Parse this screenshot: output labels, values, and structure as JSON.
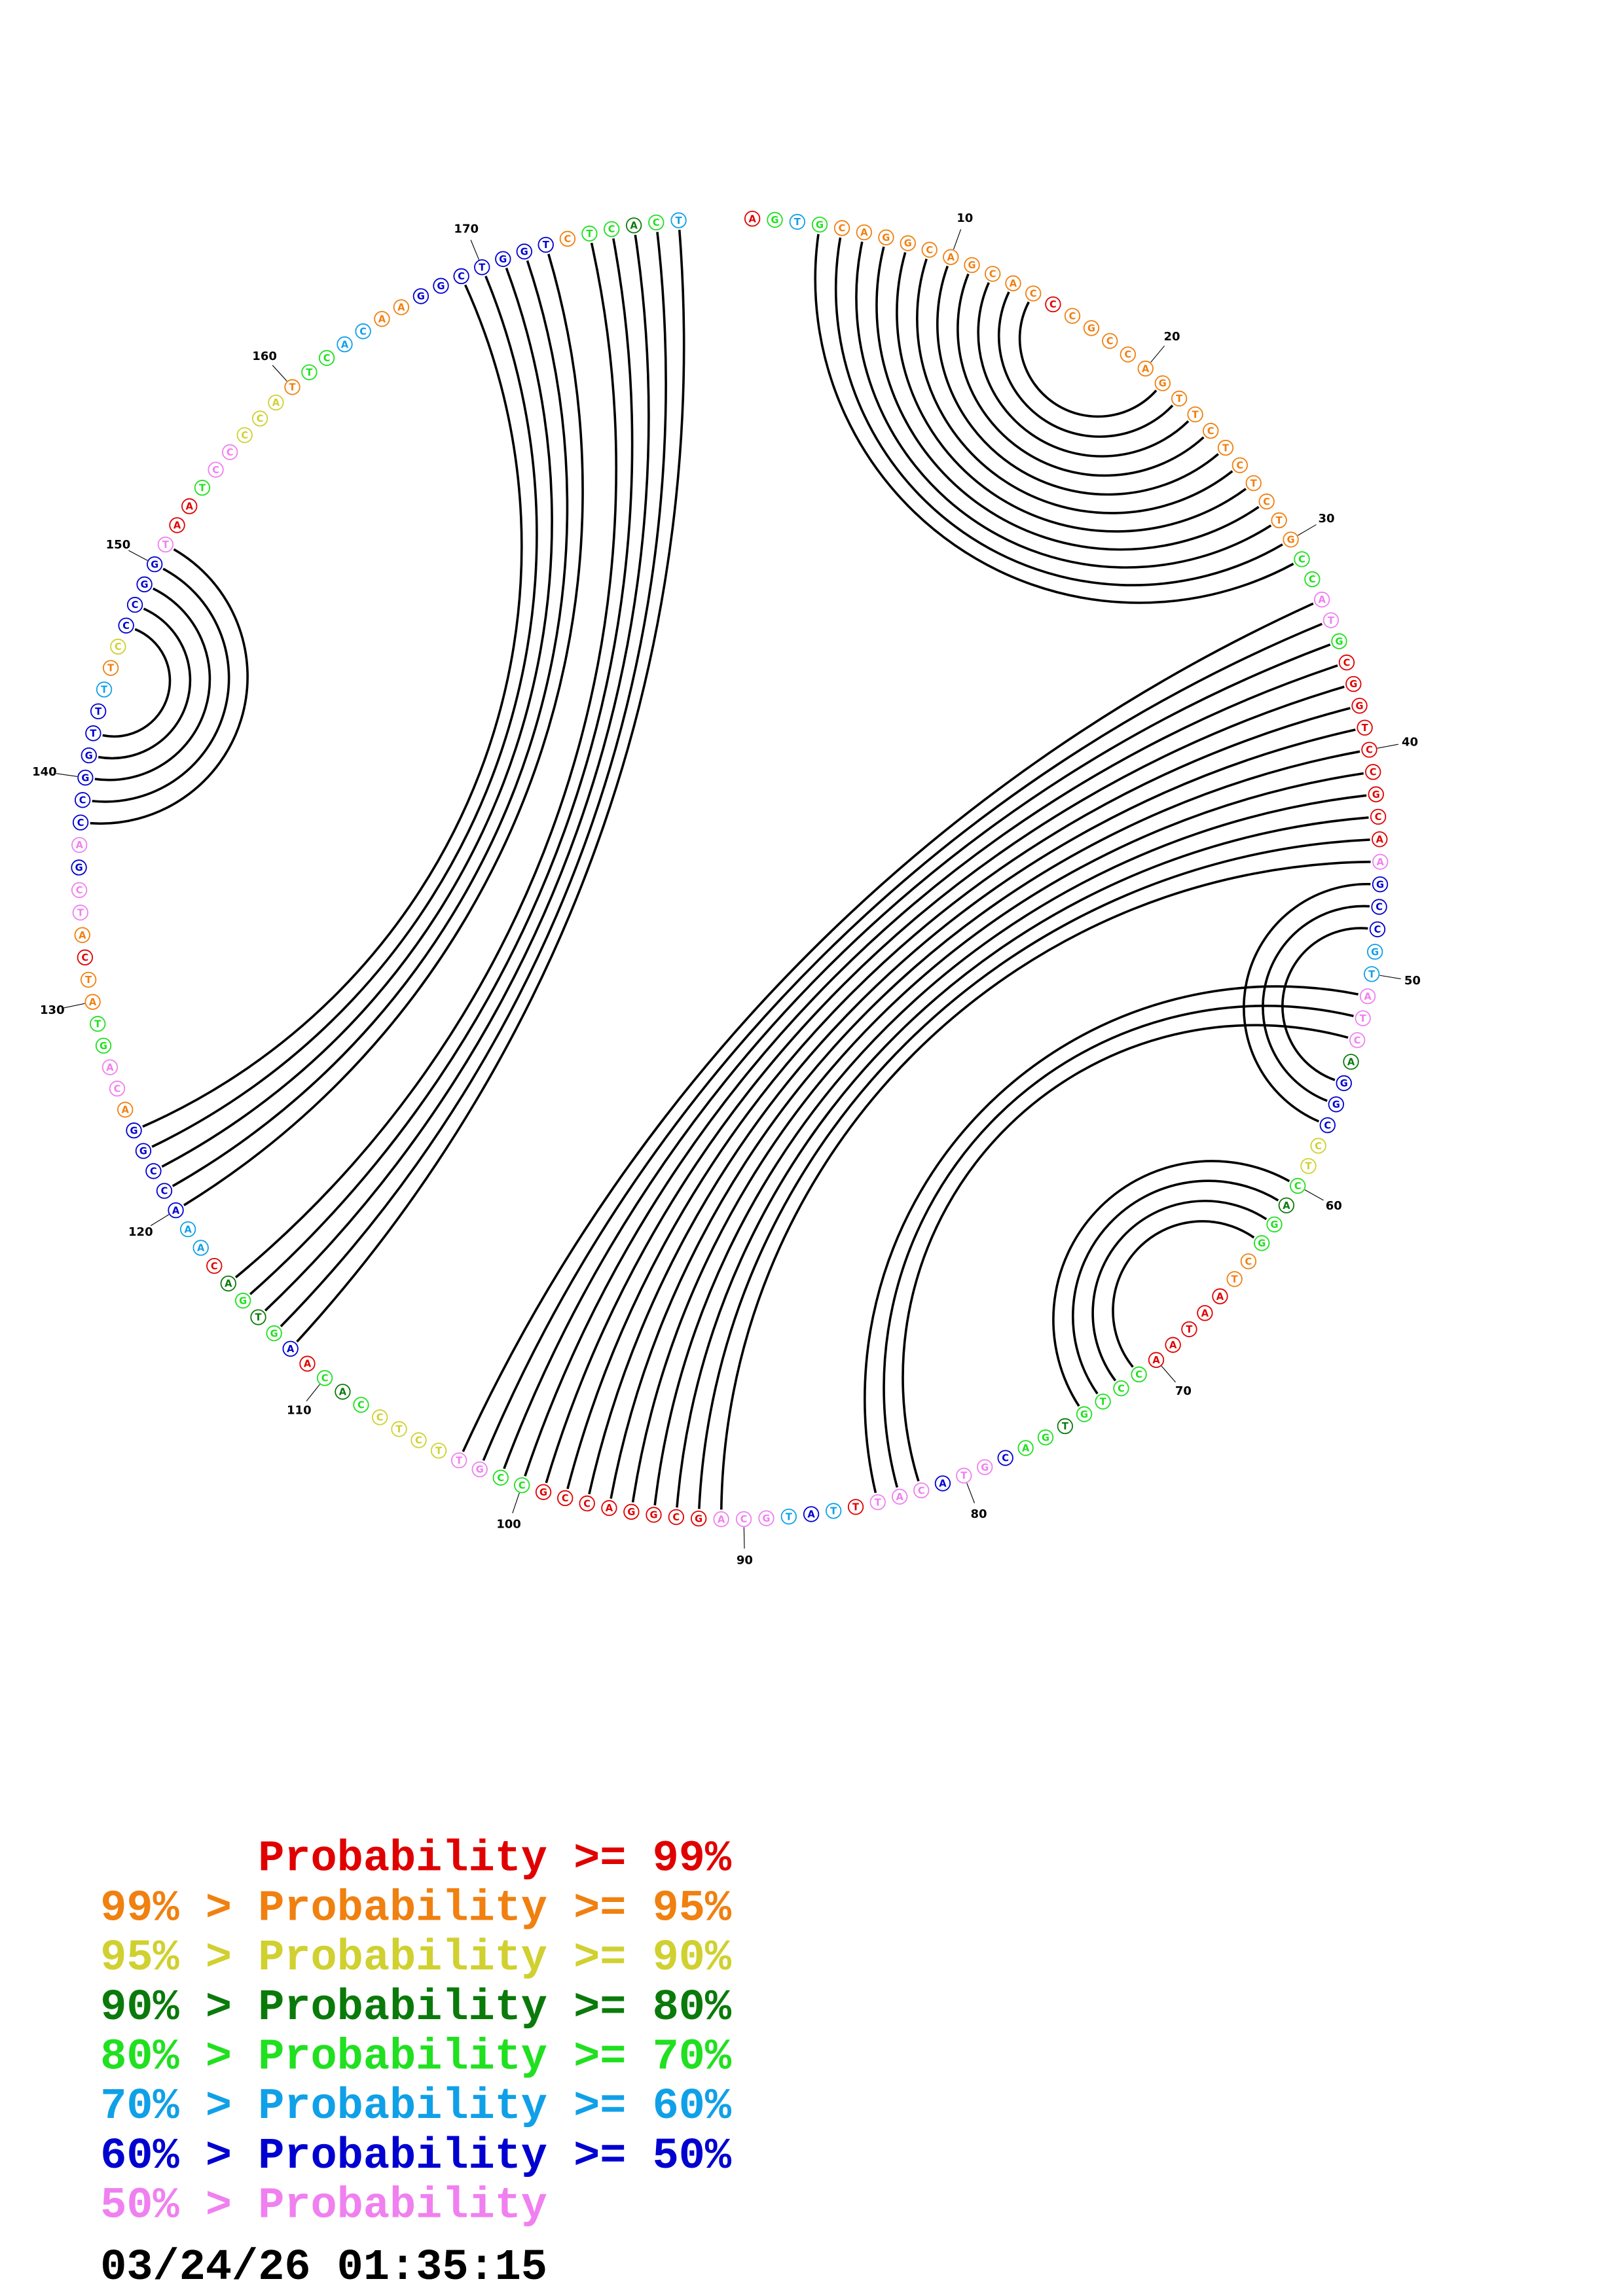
{
  "structure": {
    "bases": [
      "A",
      "G",
      "T",
      "G",
      "C",
      "A",
      "G",
      "G",
      "C",
      "A",
      "G",
      "C",
      "A",
      "C",
      "C",
      "C",
      "G",
      "C",
      "C",
      "A",
      "G",
      "T",
      "T",
      "C",
      "T",
      "C",
      "T",
      "C",
      "T",
      "G",
      "C",
      "C",
      "A",
      "T",
      "G",
      "C",
      "G",
      "G",
      "T",
      "C",
      "C",
      "G",
      "C",
      "A",
      "A",
      "G",
      "C",
      "C",
      "G",
      "T",
      "A",
      "T",
      "C",
      "A",
      "G",
      "G",
      "C",
      "C",
      "T",
      "C",
      "A",
      "G",
      "G",
      "C",
      "T",
      "A",
      "A",
      "T",
      "A",
      "A",
      "C",
      "C",
      "T",
      "G",
      "T",
      "G",
      "A",
      "C",
      "G",
      "T",
      "A",
      "C",
      "A",
      "T",
      "T",
      "T",
      "A",
      "T",
      "G",
      "C",
      "A",
      "G",
      "C",
      "G",
      "G",
      "A",
      "C",
      "C",
      "G",
      "C",
      "C",
      "G",
      "T",
      "T",
      "C",
      "T",
      "C",
      "C",
      "A",
      "C",
      "A",
      "A",
      "G",
      "T",
      "G",
      "A",
      "C",
      "A",
      "A",
      "A",
      "C",
      "C",
      "G",
      "G",
      "A",
      "C",
      "A",
      "G",
      "T",
      "A",
      "T",
      "C",
      "A",
      "T",
      "C",
      "G",
      "A",
      "C",
      "C",
      "G",
      "G",
      "T",
      "T",
      "T",
      "T",
      "C",
      "C",
      "C",
      "G",
      "G",
      "T",
      "A",
      "A",
      "T",
      "C",
      "C",
      "C",
      "C",
      "A",
      "T",
      "T",
      "C",
      "A",
      "C",
      "A",
      "A",
      "G",
      "G",
      "C",
      "T",
      "G",
      "G",
      "T",
      "C",
      "T",
      "C",
      "A",
      "C",
      "T"
    ],
    "classes": [
      0,
      4,
      5,
      4,
      1,
      1,
      1,
      1,
      1,
      1,
      1,
      1,
      1,
      1,
      0,
      1,
      1,
      1,
      1,
      1,
      1,
      1,
      1,
      1,
      1,
      1,
      1,
      1,
      1,
      1,
      4,
      4,
      7,
      7,
      4,
      0,
      0,
      0,
      0,
      0,
      0,
      0,
      0,
      0,
      7,
      6,
      6,
      6,
      5,
      5,
      7,
      7,
      7,
      3,
      6,
      6,
      6,
      2,
      2,
      4,
      3,
      4,
      4,
      1,
      1,
      0,
      0,
      0,
      0,
      0,
      4,
      4,
      4,
      4,
      3,
      4,
      4,
      6,
      7,
      7,
      6,
      7,
      7,
      7,
      0,
      5,
      6,
      5,
      7,
      7,
      7,
      0,
      0,
      0,
      0,
      0,
      0,
      0,
      0,
      4,
      4,
      7,
      7,
      2,
      2,
      2,
      2,
      4,
      3,
      4,
      0,
      6,
      4,
      3,
      4,
      3,
      0,
      5,
      5,
      6,
      6,
      6,
      6,
      6,
      1,
      7,
      7,
      4,
      4,
      1,
      1,
      0,
      1,
      7,
      7,
      6,
      7,
      6,
      6,
      6,
      6,
      6,
      6,
      5,
      1,
      2,
      6,
      6,
      6,
      6,
      7,
      0,
      0,
      4,
      7,
      7,
      2,
      2,
      2,
      1,
      4,
      4,
      5,
      5,
      1,
      1,
      6,
      6,
      6,
      6,
      6,
      6,
      6,
      1,
      4,
      4,
      3,
      4,
      5
    ],
    "pairs": [
      [
        4,
        31
      ],
      [
        5,
        30
      ],
      [
        6,
        29
      ],
      [
        7,
        28
      ],
      [
        8,
        27
      ],
      [
        9,
        26
      ],
      [
        10,
        25
      ],
      [
        11,
        24
      ],
      [
        12,
        23
      ],
      [
        13,
        22
      ],
      [
        14,
        21
      ],
      [
        33,
        103
      ],
      [
        34,
        102
      ],
      [
        35,
        101
      ],
      [
        36,
        100
      ],
      [
        37,
        99
      ],
      [
        38,
        98
      ],
      [
        39,
        97
      ],
      [
        40,
        96
      ],
      [
        41,
        95
      ],
      [
        42,
        94
      ],
      [
        43,
        93
      ],
      [
        44,
        92
      ],
      [
        45,
        91
      ],
      [
        46,
        57
      ],
      [
        47,
        56
      ],
      [
        48,
        55
      ],
      [
        51,
        84
      ],
      [
        52,
        83
      ],
      [
        53,
        82
      ],
      [
        60,
        74
      ],
      [
        61,
        73
      ],
      [
        62,
        72
      ],
      [
        63,
        71
      ],
      [
        169,
        124
      ],
      [
        170,
        123
      ],
      [
        171,
        122
      ],
      [
        172,
        121
      ],
      [
        173,
        120
      ],
      [
        175,
        116
      ],
      [
        176,
        115
      ],
      [
        177,
        114
      ],
      [
        178,
        113
      ],
      [
        179,
        112
      ],
      [
        138,
        151
      ],
      [
        139,
        150
      ],
      [
        140,
        149
      ],
      [
        141,
        148
      ],
      [
        142,
        147
      ]
    ],
    "ticks": [
      10,
      20,
      30,
      40,
      50,
      60,
      70,
      80,
      90,
      100,
      110,
      120,
      130,
      140,
      150,
      160,
      170
    ]
  },
  "legend": {
    "rows": [
      {
        "color": "#e00000",
        "main": "Probability >= 99%"
      },
      {
        "color": "#f08010",
        "prefix": "99% >",
        "main": "Probability >= 95%"
      },
      {
        "color": "#d0d030",
        "prefix": "95% >",
        "main": "Probability >= 90%"
      },
      {
        "color": "#0a7a0a",
        "prefix": "90% >",
        "main": "Probability >= 80%"
      },
      {
        "color": "#20e020",
        "prefix": "80% >",
        "main": "Probability >= 70%"
      },
      {
        "color": "#10a0e8",
        "prefix": "70% >",
        "main": "Probability >= 60%"
      },
      {
        "color": "#0000d0",
        "prefix": "60% >",
        "main": "Probability >= 50%"
      },
      {
        "color": "#f080f0",
        "prefix": "50% >",
        "main": "Probability"
      }
    ]
  },
  "timestamp": "03/24/26 01:35:15"
}
